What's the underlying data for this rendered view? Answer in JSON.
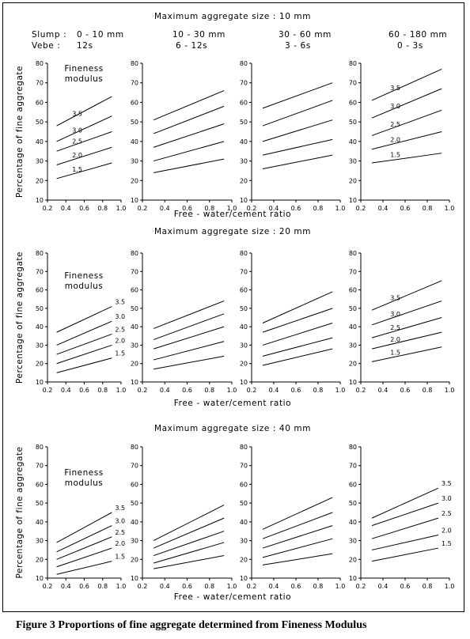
{
  "figure_caption": "Figure 3 Proportions of fine aggregate determined from Fineness Modulus",
  "column_headers": {
    "slump_label": "Slump :",
    "vebe_label": "Vebe  :",
    "slump": [
      "0 - 10 mm",
      "10 - 30 mm",
      "30 - 60 mm",
      "60 - 180 mm"
    ],
    "vebe": [
      "12s",
      "6 - 12s",
      "3 - 6s",
      "0 - 3s"
    ]
  },
  "ylabel": "Percentage of fine aggregate",
  "fineness_title": [
    "Fineness",
    "modulus"
  ],
  "chart_data": [
    {
      "type": "line",
      "title": "Maximum aggregate size : 10 mm",
      "xlabel": "Free - water/cement ratio",
      "ylim": [
        10,
        80
      ],
      "xlim": [
        0.2,
        1.0
      ],
      "x_ticks": [
        "0.2",
        "0.4",
        "0.6",
        "0.8",
        "1.0"
      ],
      "y_ticks": [
        "10",
        "20",
        "30",
        "40",
        "50",
        "60",
        "70",
        "80"
      ],
      "panels": [
        {
          "slump": "0 - 10 mm",
          "vebe": "12s",
          "label_pos": "inline",
          "series": [
            {
              "name": "3.5",
              "x": [
                0.3,
                0.9
              ],
              "y": [
                48,
                63
              ]
            },
            {
              "name": "3.0",
              "x": [
                0.3,
                0.9
              ],
              "y": [
                40,
                53
              ]
            },
            {
              "name": "2.5",
              "x": [
                0.3,
                0.9
              ],
              "y": [
                35,
                45
              ]
            },
            {
              "name": "2.0",
              "x": [
                0.3,
                0.9
              ],
              "y": [
                28,
                37
              ]
            },
            {
              "name": "1.5",
              "x": [
                0.3,
                0.9
              ],
              "y": [
                21,
                29
              ]
            }
          ]
        },
        {
          "slump": "10 - 30 mm",
          "vebe": "6 - 12s",
          "label_pos": "none",
          "series": [
            {
              "name": "3.5",
              "x": [
                0.3,
                0.93
              ],
              "y": [
                51,
                66
              ]
            },
            {
              "name": "3.0",
              "x": [
                0.3,
                0.93
              ],
              "y": [
                44,
                58
              ]
            },
            {
              "name": "2.5",
              "x": [
                0.3,
                0.93
              ],
              "y": [
                37,
                49
              ]
            },
            {
              "name": "2.0",
              "x": [
                0.3,
                0.93
              ],
              "y": [
                30,
                40
              ]
            },
            {
              "name": "1.5",
              "x": [
                0.3,
                0.93
              ],
              "y": [
                24,
                31
              ]
            }
          ]
        },
        {
          "slump": "30 - 60 mm",
          "vebe": "3 - 6s",
          "label_pos": "none",
          "series": [
            {
              "name": "3.5",
              "x": [
                0.3,
                0.93
              ],
              "y": [
                57,
                70
              ]
            },
            {
              "name": "3.0",
              "x": [
                0.3,
                0.93
              ],
              "y": [
                48,
                61
              ]
            },
            {
              "name": "2.5",
              "x": [
                0.3,
                0.93
              ],
              "y": [
                40,
                51
              ]
            },
            {
              "name": "2.0",
              "x": [
                0.3,
                0.93
              ],
              "y": [
                33,
                41
              ]
            },
            {
              "name": "1.5",
              "x": [
                0.3,
                0.93
              ],
              "y": [
                26,
                33
              ]
            }
          ]
        },
        {
          "slump": "60 - 180 mm",
          "vebe": "0 - 3s",
          "label_pos": "inline",
          "series": [
            {
              "name": "3.5",
              "x": [
                0.3,
                0.93
              ],
              "y": [
                61,
                77
              ]
            },
            {
              "name": "3.0",
              "x": [
                0.3,
                0.93
              ],
              "y": [
                52,
                67
              ]
            },
            {
              "name": "2.5",
              "x": [
                0.3,
                0.93
              ],
              "y": [
                43,
                56
              ]
            },
            {
              "name": "2.0",
              "x": [
                0.3,
                0.93
              ],
              "y": [
                36,
                45
              ]
            },
            {
              "name": "1.5",
              "x": [
                0.3,
                0.93
              ],
              "y": [
                29,
                34
              ]
            }
          ]
        }
      ]
    },
    {
      "type": "line",
      "title": "Maximum aggregate size : 20 mm",
      "xlabel": "Free - water/cement ratio",
      "ylim": [
        10,
        80
      ],
      "xlim": [
        0.2,
        1.0
      ],
      "x_ticks": [
        "0.2",
        "0.4",
        "0.6",
        "0.8",
        "1.0"
      ],
      "y_ticks": [
        "10",
        "20",
        "30",
        "40",
        "50",
        "60",
        "70",
        "80"
      ],
      "panels": [
        {
          "slump": "0 - 10 mm",
          "vebe": "12s",
          "label_pos": "end",
          "series": [
            {
              "name": "3.5",
              "x": [
                0.3,
                0.9
              ],
              "y": [
                37,
                51
              ]
            },
            {
              "name": "3.0",
              "x": [
                0.3,
                0.9
              ],
              "y": [
                30,
                43
              ]
            },
            {
              "name": "2.5",
              "x": [
                0.3,
                0.9
              ],
              "y": [
                25,
                36
              ]
            },
            {
              "name": "2.0",
              "x": [
                0.3,
                0.9
              ],
              "y": [
                20,
                30
              ]
            },
            {
              "name": "1.5",
              "x": [
                0.3,
                0.9
              ],
              "y": [
                15,
                23
              ]
            }
          ]
        },
        {
          "slump": "10 - 30 mm",
          "vebe": "6 - 12s",
          "label_pos": "none",
          "series": [
            {
              "name": "3.5",
              "x": [
                0.3,
                0.93
              ],
              "y": [
                39,
                54
              ]
            },
            {
              "name": "3.0",
              "x": [
                0.3,
                0.93
              ],
              "y": [
                33,
                47
              ]
            },
            {
              "name": "2.5",
              "x": [
                0.3,
                0.93
              ],
              "y": [
                28,
                40
              ]
            },
            {
              "name": "2.0",
              "x": [
                0.3,
                0.93
              ],
              "y": [
                22,
                32
              ]
            },
            {
              "name": "1.5",
              "x": [
                0.3,
                0.93
              ],
              "y": [
                17,
                24
              ]
            }
          ]
        },
        {
          "slump": "30 - 60 mm",
          "vebe": "3 - 6s",
          "label_pos": "none",
          "series": [
            {
              "name": "3.5",
              "x": [
                0.3,
                0.93
              ],
              "y": [
                42,
                59
              ]
            },
            {
              "name": "3.0",
              "x": [
                0.3,
                0.93
              ],
              "y": [
                37,
                50
              ]
            },
            {
              "name": "2.5",
              "x": [
                0.3,
                0.93
              ],
              "y": [
                30,
                42
              ]
            },
            {
              "name": "2.0",
              "x": [
                0.3,
                0.93
              ],
              "y": [
                24,
                34
              ]
            },
            {
              "name": "1.5",
              "x": [
                0.3,
                0.93
              ],
              "y": [
                19,
                28
              ]
            }
          ]
        },
        {
          "slump": "60 - 180 mm",
          "vebe": "0 - 3s",
          "label_pos": "inline",
          "series": [
            {
              "name": "3.5",
              "x": [
                0.3,
                0.93
              ],
              "y": [
                49,
                65
              ]
            },
            {
              "name": "3.0",
              "x": [
                0.3,
                0.93
              ],
              "y": [
                41,
                54
              ]
            },
            {
              "name": "2.5",
              "x": [
                0.3,
                0.93
              ],
              "y": [
                34,
                45
              ]
            },
            {
              "name": "2.0",
              "x": [
                0.3,
                0.93
              ],
              "y": [
                28,
                37
              ]
            },
            {
              "name": "1.5",
              "x": [
                0.3,
                0.93
              ],
              "y": [
                21,
                29
              ]
            }
          ]
        }
      ]
    },
    {
      "type": "line",
      "title": "Maximum aggregate size : 40 mm",
      "xlabel": "Free - water/cement ratio",
      "ylim": [
        10,
        80
      ],
      "xlim": [
        0.2,
        1.0
      ],
      "x_ticks": [
        "0.2",
        "0.4",
        "0.6",
        "0.8",
        "1.0"
      ],
      "y_ticks": [
        "10",
        "20",
        "30",
        "40",
        "50",
        "60",
        "70",
        "80"
      ],
      "panels": [
        {
          "slump": "0 - 10 mm",
          "vebe": "12s",
          "label_pos": "end",
          "series": [
            {
              "name": "3.5",
              "x": [
                0.3,
                0.9
              ],
              "y": [
                29,
                45
              ]
            },
            {
              "name": "3.0",
              "x": [
                0.3,
                0.9
              ],
              "y": [
                24,
                38
              ]
            },
            {
              "name": "2.5",
              "x": [
                0.3,
                0.9
              ],
              "y": [
                20,
                32
              ]
            },
            {
              "name": "2.0",
              "x": [
                0.3,
                0.9
              ],
              "y": [
                16,
                26
              ]
            },
            {
              "name": "1.5",
              "x": [
                0.3,
                0.9
              ],
              "y": [
                12,
                19
              ]
            }
          ]
        },
        {
          "slump": "10 - 30 mm",
          "vebe": "6 - 12s",
          "label_pos": "none",
          "series": [
            {
              "name": "3.5",
              "x": [
                0.3,
                0.93
              ],
              "y": [
                30,
                49
              ]
            },
            {
              "name": "3.0",
              "x": [
                0.3,
                0.93
              ],
              "y": [
                26,
                42
              ]
            },
            {
              "name": "2.5",
              "x": [
                0.3,
                0.93
              ],
              "y": [
                22,
                35
              ]
            },
            {
              "name": "2.0",
              "x": [
                0.3,
                0.93
              ],
              "y": [
                18,
                29
              ]
            },
            {
              "name": "1.5",
              "x": [
                0.3,
                0.93
              ],
              "y": [
                15,
                22
              ]
            }
          ]
        },
        {
          "slump": "30 - 60 mm",
          "vebe": "3 - 6s",
          "label_pos": "none",
          "series": [
            {
              "name": "3.5",
              "x": [
                0.3,
                0.93
              ],
              "y": [
                36,
                53
              ]
            },
            {
              "name": "3.0",
              "x": [
                0.3,
                0.93
              ],
              "y": [
                31,
                45
              ]
            },
            {
              "name": "2.5",
              "x": [
                0.3,
                0.93
              ],
              "y": [
                26,
                38
              ]
            },
            {
              "name": "2.0",
              "x": [
                0.3,
                0.93
              ],
              "y": [
                21,
                31
              ]
            },
            {
              "name": "1.5",
              "x": [
                0.3,
                0.93
              ],
              "y": [
                17,
                23
              ]
            }
          ]
        },
        {
          "slump": "60 - 180 mm",
          "vebe": "0 - 3s",
          "label_pos": "end",
          "series": [
            {
              "name": "3.5",
              "x": [
                0.3,
                0.9
              ],
              "y": [
                42,
                58
              ]
            },
            {
              "name": "3.0",
              "x": [
                0.3,
                0.9
              ],
              "y": [
                38,
                50
              ]
            },
            {
              "name": "2.5",
              "x": [
                0.3,
                0.9
              ],
              "y": [
                31,
                42
              ]
            },
            {
              "name": "2.0",
              "x": [
                0.3,
                0.9
              ],
              "y": [
                25,
                33
              ]
            },
            {
              "name": "1.5",
              "x": [
                0.3,
                0.9
              ],
              "y": [
                19,
                26
              ]
            }
          ]
        }
      ]
    }
  ]
}
